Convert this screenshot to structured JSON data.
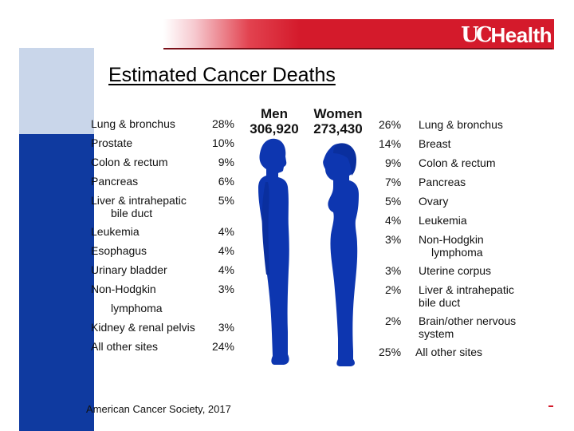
{
  "title": "Estimated Cancer Deaths",
  "logo_text": "Health",
  "men": {
    "heading": "Men",
    "total": "306,920",
    "rows": [
      {
        "label": "Lung & bronchus",
        "label2": "",
        "pct": "28%"
      },
      {
        "label": "Prostate",
        "label2": "",
        "pct": "10%"
      },
      {
        "label": "Colon & rectum",
        "label2": "",
        "pct": "9%"
      },
      {
        "label": "Pancreas",
        "label2": "",
        "pct": "6%"
      },
      {
        "label": "Liver & intrahepatic",
        "label2": "bile duct",
        "pct": "5%"
      },
      {
        "label": "Leukemia",
        "label2": "",
        "pct": "4%"
      },
      {
        "label": "Esophagus",
        "label2": "",
        "pct": "4%"
      },
      {
        "label": "Urinary bladder",
        "label2": "",
        "pct": "4%"
      },
      {
        "label": "Non-Hodgkin",
        "label2": "lymphoma",
        "pct": "3%"
      },
      {
        "label": "Kidney & renal pelvis",
        "label2": "",
        "pct": "3%"
      },
      {
        "label": "All other sites",
        "label2": "",
        "pct": "24%"
      }
    ]
  },
  "women": {
    "heading": "Women",
    "total": "273,430",
    "rows": [
      {
        "label": "Lung & bronchus",
        "label2": "",
        "pct": "26%"
      },
      {
        "label": "Breast",
        "label2": "",
        "pct": "14%"
      },
      {
        "label": "Colon & rectum",
        "label2": "",
        "pct": "9%"
      },
      {
        "label": "Pancreas",
        "label2": "",
        "pct": "7%"
      },
      {
        "label": "Ovary",
        "label2": "",
        "pct": "5%"
      },
      {
        "label": "Leukemia",
        "label2": "",
        "pct": "4%"
      },
      {
        "label": "Non-Hodgkin",
        "label2": "lymphoma",
        "pct": "3%"
      },
      {
        "label": "Uterine corpus",
        "label2": "",
        "pct": "3%"
      },
      {
        "label": "Liver & intrahepatic",
        "label2": "bile duct",
        "pct": "2%"
      },
      {
        "label": "Brain/other nervous",
        "label2": "system",
        "pct": "2%"
      },
      {
        "label": "All other sites",
        "label2": "",
        "pct": "25%"
      }
    ]
  },
  "source": "American Cancer Society, 2017",
  "colors": {
    "header_red": "#d41a2b",
    "accent_blue": "#0f3aa0",
    "accent_light": "#c9d6ea",
    "silhouette": "#0d36b0"
  }
}
